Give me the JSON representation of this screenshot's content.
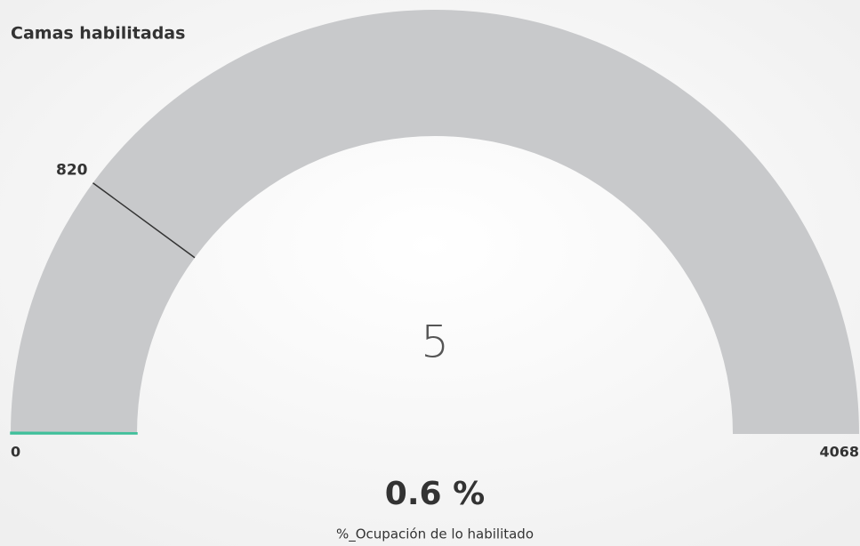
{
  "chart_data": {
    "type": "gauge",
    "title": "Camas habilitadas",
    "min": 0,
    "max": 4068,
    "value": 5,
    "target": 820,
    "kpi": {
      "value": 0.6,
      "label": "0.6 %"
    },
    "kpi_name": "%_Ocupación de lo habilitado",
    "track_color": "#c8c9cb",
    "fill_color": "#3fbf9a",
    "target_color": "#333333"
  }
}
